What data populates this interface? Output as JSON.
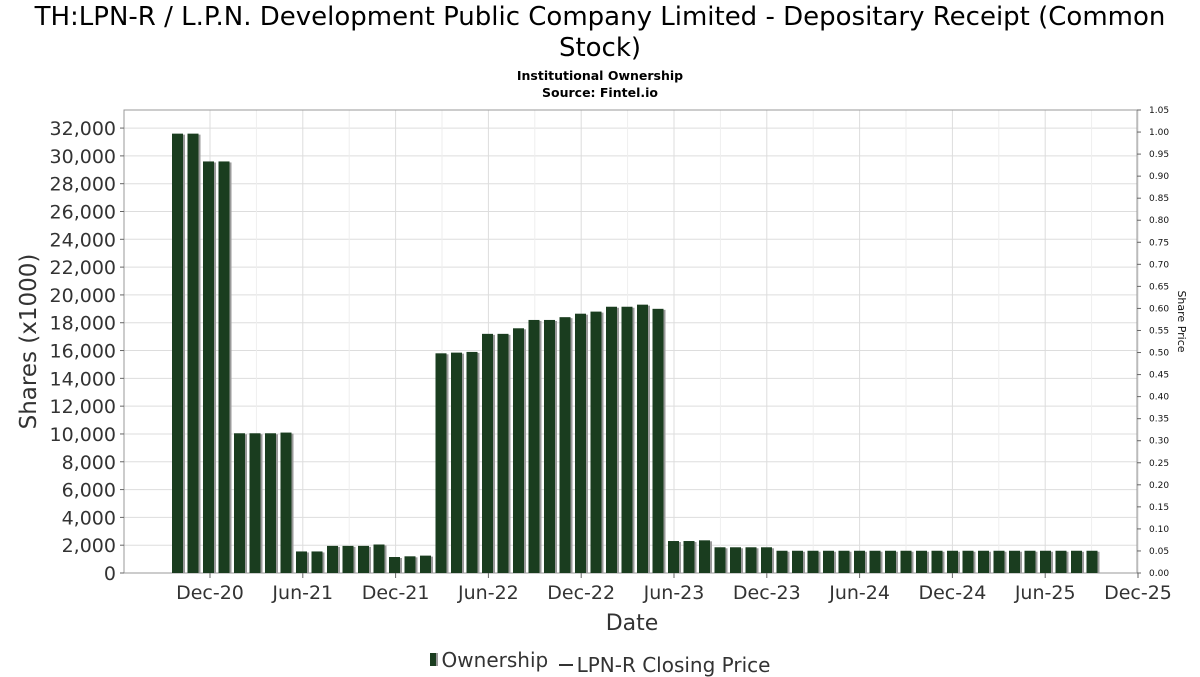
{
  "title": "TH:LPN-R / L.P.N. Development Public Company Limited - Depositary Receipt (Common Stock)",
  "subtitle": "Institutional Ownership",
  "source": "Source: Fintel.io",
  "colors": {
    "bar": "#1a3d1f",
    "bar_shadow": "#9a9a9a",
    "grid": "#dddddd",
    "plot_border": "#999999"
  },
  "legend": {
    "ownership": "Ownership",
    "price": "LPN-R Closing Price"
  },
  "chart_data": {
    "type": "bar",
    "title": "TH:LPN-R / L.P.N. Development Public Company Limited - Depositary Receipt (Common Stock)",
    "xlabel": "Date",
    "ylabel": "Shares (x1000)",
    "y2label": "Share Price",
    "ylim": [
      0,
      33300
    ],
    "y2lim": [
      0,
      1.05
    ],
    "grid": true,
    "legend_position": "bottom",
    "y_ticks": [
      "0",
      "2,000",
      "4,000",
      "6,000",
      "8,000",
      "10,000",
      "12,000",
      "14,000",
      "16,000",
      "18,000",
      "20,000",
      "22,000",
      "24,000",
      "26,000",
      "28,000",
      "30,000",
      "32,000"
    ],
    "y2_ticks": [
      "0.00",
      "0.05",
      "0.10",
      "0.15",
      "0.20",
      "0.25",
      "0.30",
      "0.35",
      "0.40",
      "0.45",
      "0.50",
      "0.55",
      "0.60",
      "0.65",
      "0.70",
      "0.75",
      "0.80",
      "0.85",
      "0.90",
      "0.95",
      "1.00",
      "1.05"
    ],
    "x_ticks": [
      "Dec-20",
      "Jun-21",
      "Dec-21",
      "Jun-22",
      "Dec-22",
      "Jun-23",
      "Dec-23",
      "Jun-24",
      "Dec-24",
      "Jun-25",
      "Dec-25"
    ],
    "series": [
      {
        "name": "Ownership",
        "values": [
          31600,
          31600,
          29600,
          29600,
          10050,
          10050,
          10050,
          10100,
          1550,
          1550,
          1950,
          1950,
          1950,
          2050,
          1150,
          1200,
          1250,
          15800,
          15850,
          15900,
          17200,
          17200,
          17600,
          18200,
          18200,
          18400,
          18650,
          18800,
          19150,
          19150,
          19300,
          19000,
          2300,
          2300,
          2350,
          1850,
          1850,
          1850,
          1850,
          1600,
          1600,
          1600,
          1600,
          1600,
          1600,
          1600,
          1600,
          1600,
          1600,
          1600,
          1600,
          1600,
          1600,
          1600,
          1600,
          1600,
          1600,
          1600,
          1600,
          1600
        ]
      },
      {
        "name": "LPN-R Closing Price",
        "values": []
      }
    ]
  }
}
